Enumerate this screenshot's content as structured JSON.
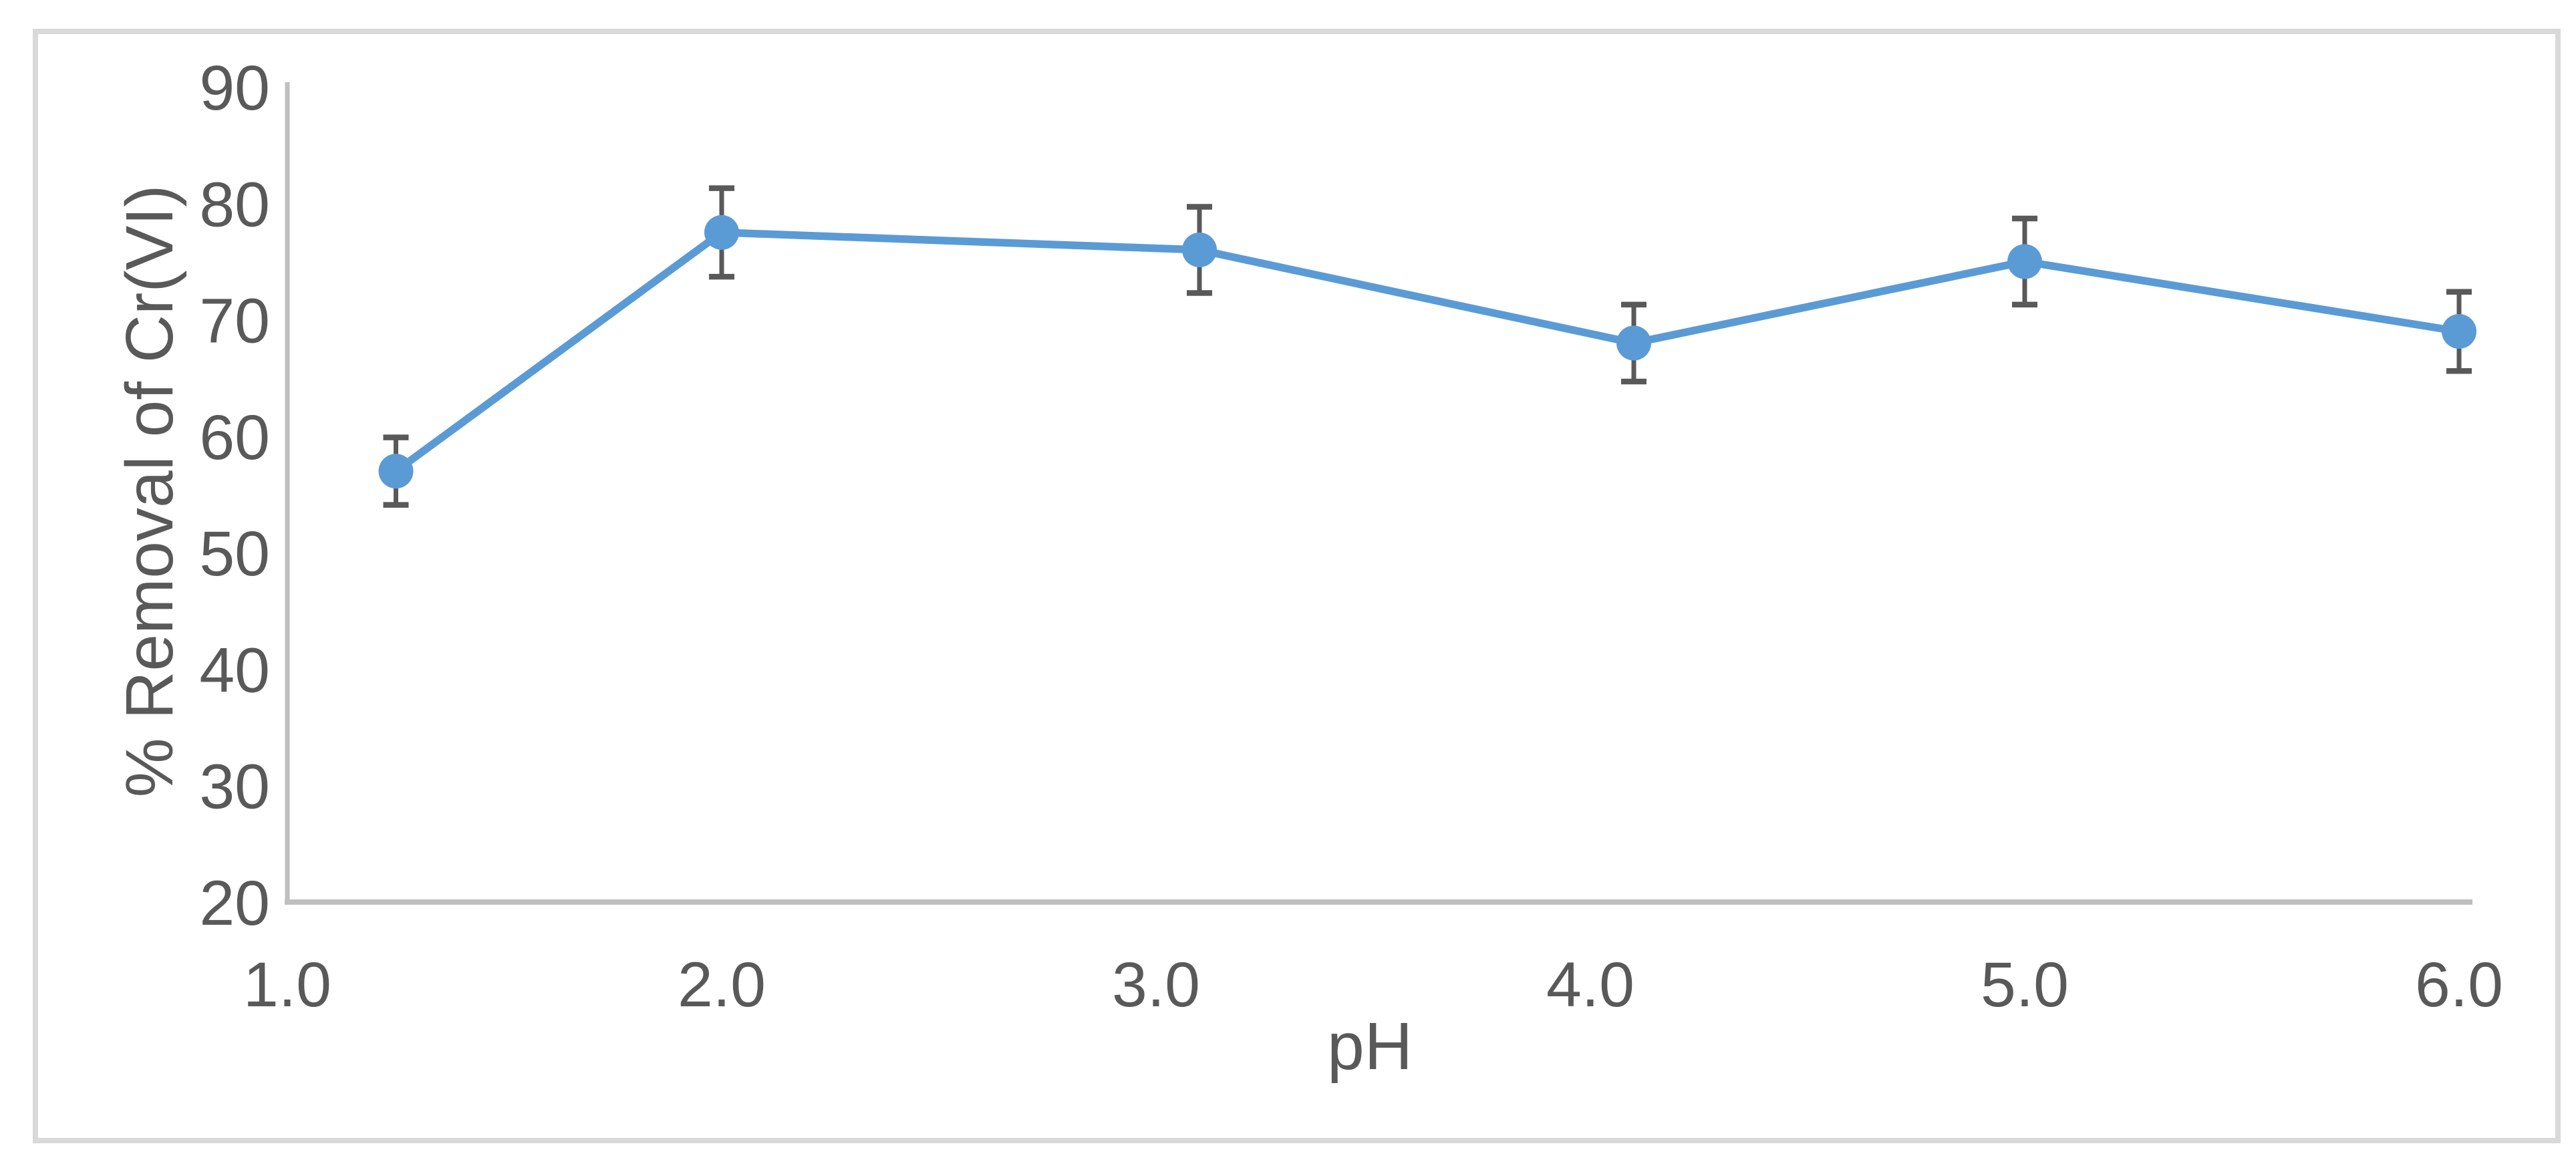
{
  "figure": {
    "background": "#ffffff",
    "frame_color": "#D9D9D9"
  },
  "chart_data": {
    "type": "line",
    "title": "",
    "xlabel": "pH",
    "ylabel": "% Removal of Cr(VI)",
    "x": [
      1.25,
      2.0,
      3.1,
      4.1,
      5.0,
      6.0
    ],
    "series": [
      {
        "name": "% Removal of Cr(VI)",
        "values": [
          57,
          77.5,
          76,
          68,
          75,
          69
        ],
        "error_bars": [
          2.9,
          3.8,
          3.7,
          3.3,
          3.7,
          3.4
        ],
        "color": "#5B9BD5",
        "marker": "circle"
      }
    ],
    "x_tick_labels": [
      "1.0",
      "2.0",
      "3.0",
      "4.0",
      "5.0",
      "6.0"
    ],
    "x_tick_values": [
      1,
      2,
      3,
      4,
      5,
      6
    ],
    "y_tick_labels": [
      "20",
      "30",
      "40",
      "50",
      "60",
      "70",
      "80",
      "90"
    ],
    "y_tick_values": [
      20,
      30,
      40,
      50,
      60,
      70,
      80,
      90
    ],
    "xlim": [
      1,
      6
    ],
    "ylim": [
      20,
      90
    ],
    "grid": false,
    "legend": "none",
    "axis_color": "#BFBFBF",
    "tick_label_color": "#595959",
    "error_bar_color": "#595959"
  }
}
